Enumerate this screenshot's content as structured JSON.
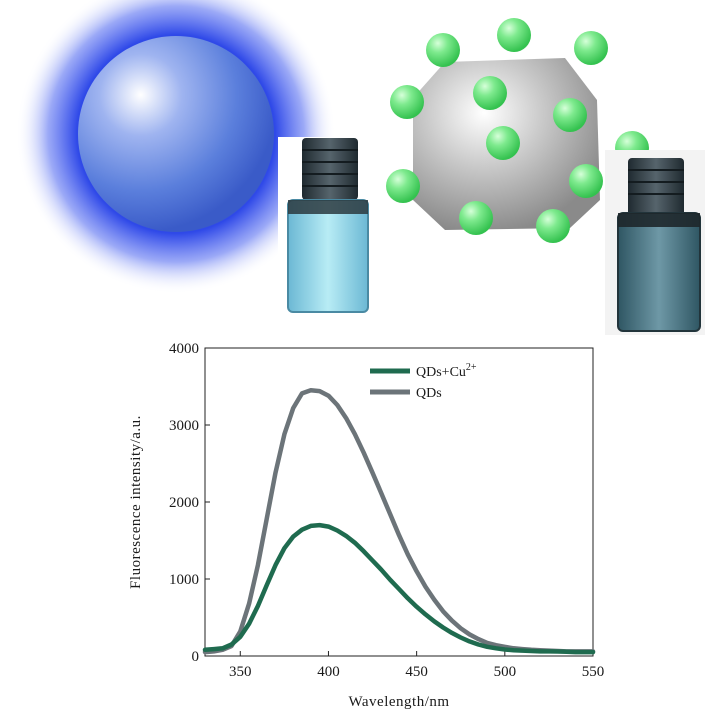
{
  "illustration": {
    "free_quantum_dot": {
      "icon": "blue-glowing-sphere",
      "color": "#2f49e8"
    },
    "quenched_quantum_dot": {
      "icon": "gray-sphere-with-green-ions",
      "sphere_color": "#a8a8a8",
      "ion_color": "#5fe27a"
    },
    "vials": [
      {
        "icon": "vial-bright-fluorescence",
        "liquid_color": "#8fd3e8"
      },
      {
        "icon": "vial-quenched-fluorescence",
        "liquid_color": "#4f7a88"
      }
    ]
  },
  "chart_data": {
    "type": "line",
    "xlabel": "Wavelength/nm",
    "ylabel": "Fluorescence intensity/a.u.",
    "xlim": [
      330,
      550
    ],
    "ylim": [
      0,
      4000
    ],
    "x_ticks": [
      350,
      400,
      450,
      500,
      550
    ],
    "y_ticks": [
      0,
      1000,
      2000,
      3000,
      4000
    ],
    "grid": false,
    "legend_position": "top-right",
    "x": [
      330,
      335,
      340,
      345,
      350,
      355,
      360,
      365,
      370,
      375,
      380,
      385,
      390,
      395,
      400,
      405,
      410,
      415,
      420,
      425,
      430,
      435,
      440,
      445,
      450,
      455,
      460,
      465,
      470,
      475,
      480,
      485,
      490,
      495,
      500,
      505,
      510,
      515,
      520,
      525,
      530,
      535,
      540,
      545,
      550
    ],
    "series": [
      {
        "name": "QDs+Cu",
        "superscript": "2+",
        "color": "#1f6b4f",
        "values": [
          80,
          90,
          100,
          150,
          250,
          420,
          650,
          920,
          1180,
          1400,
          1550,
          1640,
          1690,
          1700,
          1680,
          1630,
          1560,
          1470,
          1360,
          1240,
          1120,
          990,
          870,
          750,
          640,
          540,
          450,
          370,
          300,
          240,
          190,
          150,
          120,
          100,
          85,
          75,
          70,
          65,
          60,
          60,
          58,
          55,
          50,
          50,
          50
        ]
      },
      {
        "name": "QDs",
        "color": "#6c7479",
        "values": [
          50,
          60,
          80,
          130,
          320,
          680,
          1180,
          1780,
          2380,
          2880,
          3220,
          3410,
          3450,
          3440,
          3380,
          3260,
          3090,
          2880,
          2640,
          2380,
          2110,
          1840,
          1570,
          1320,
          1100,
          900,
          730,
          580,
          460,
          360,
          280,
          220,
          170,
          140,
          120,
          100,
          90,
          80,
          75,
          70,
          65,
          60,
          60,
          60,
          60
        ]
      }
    ]
  }
}
